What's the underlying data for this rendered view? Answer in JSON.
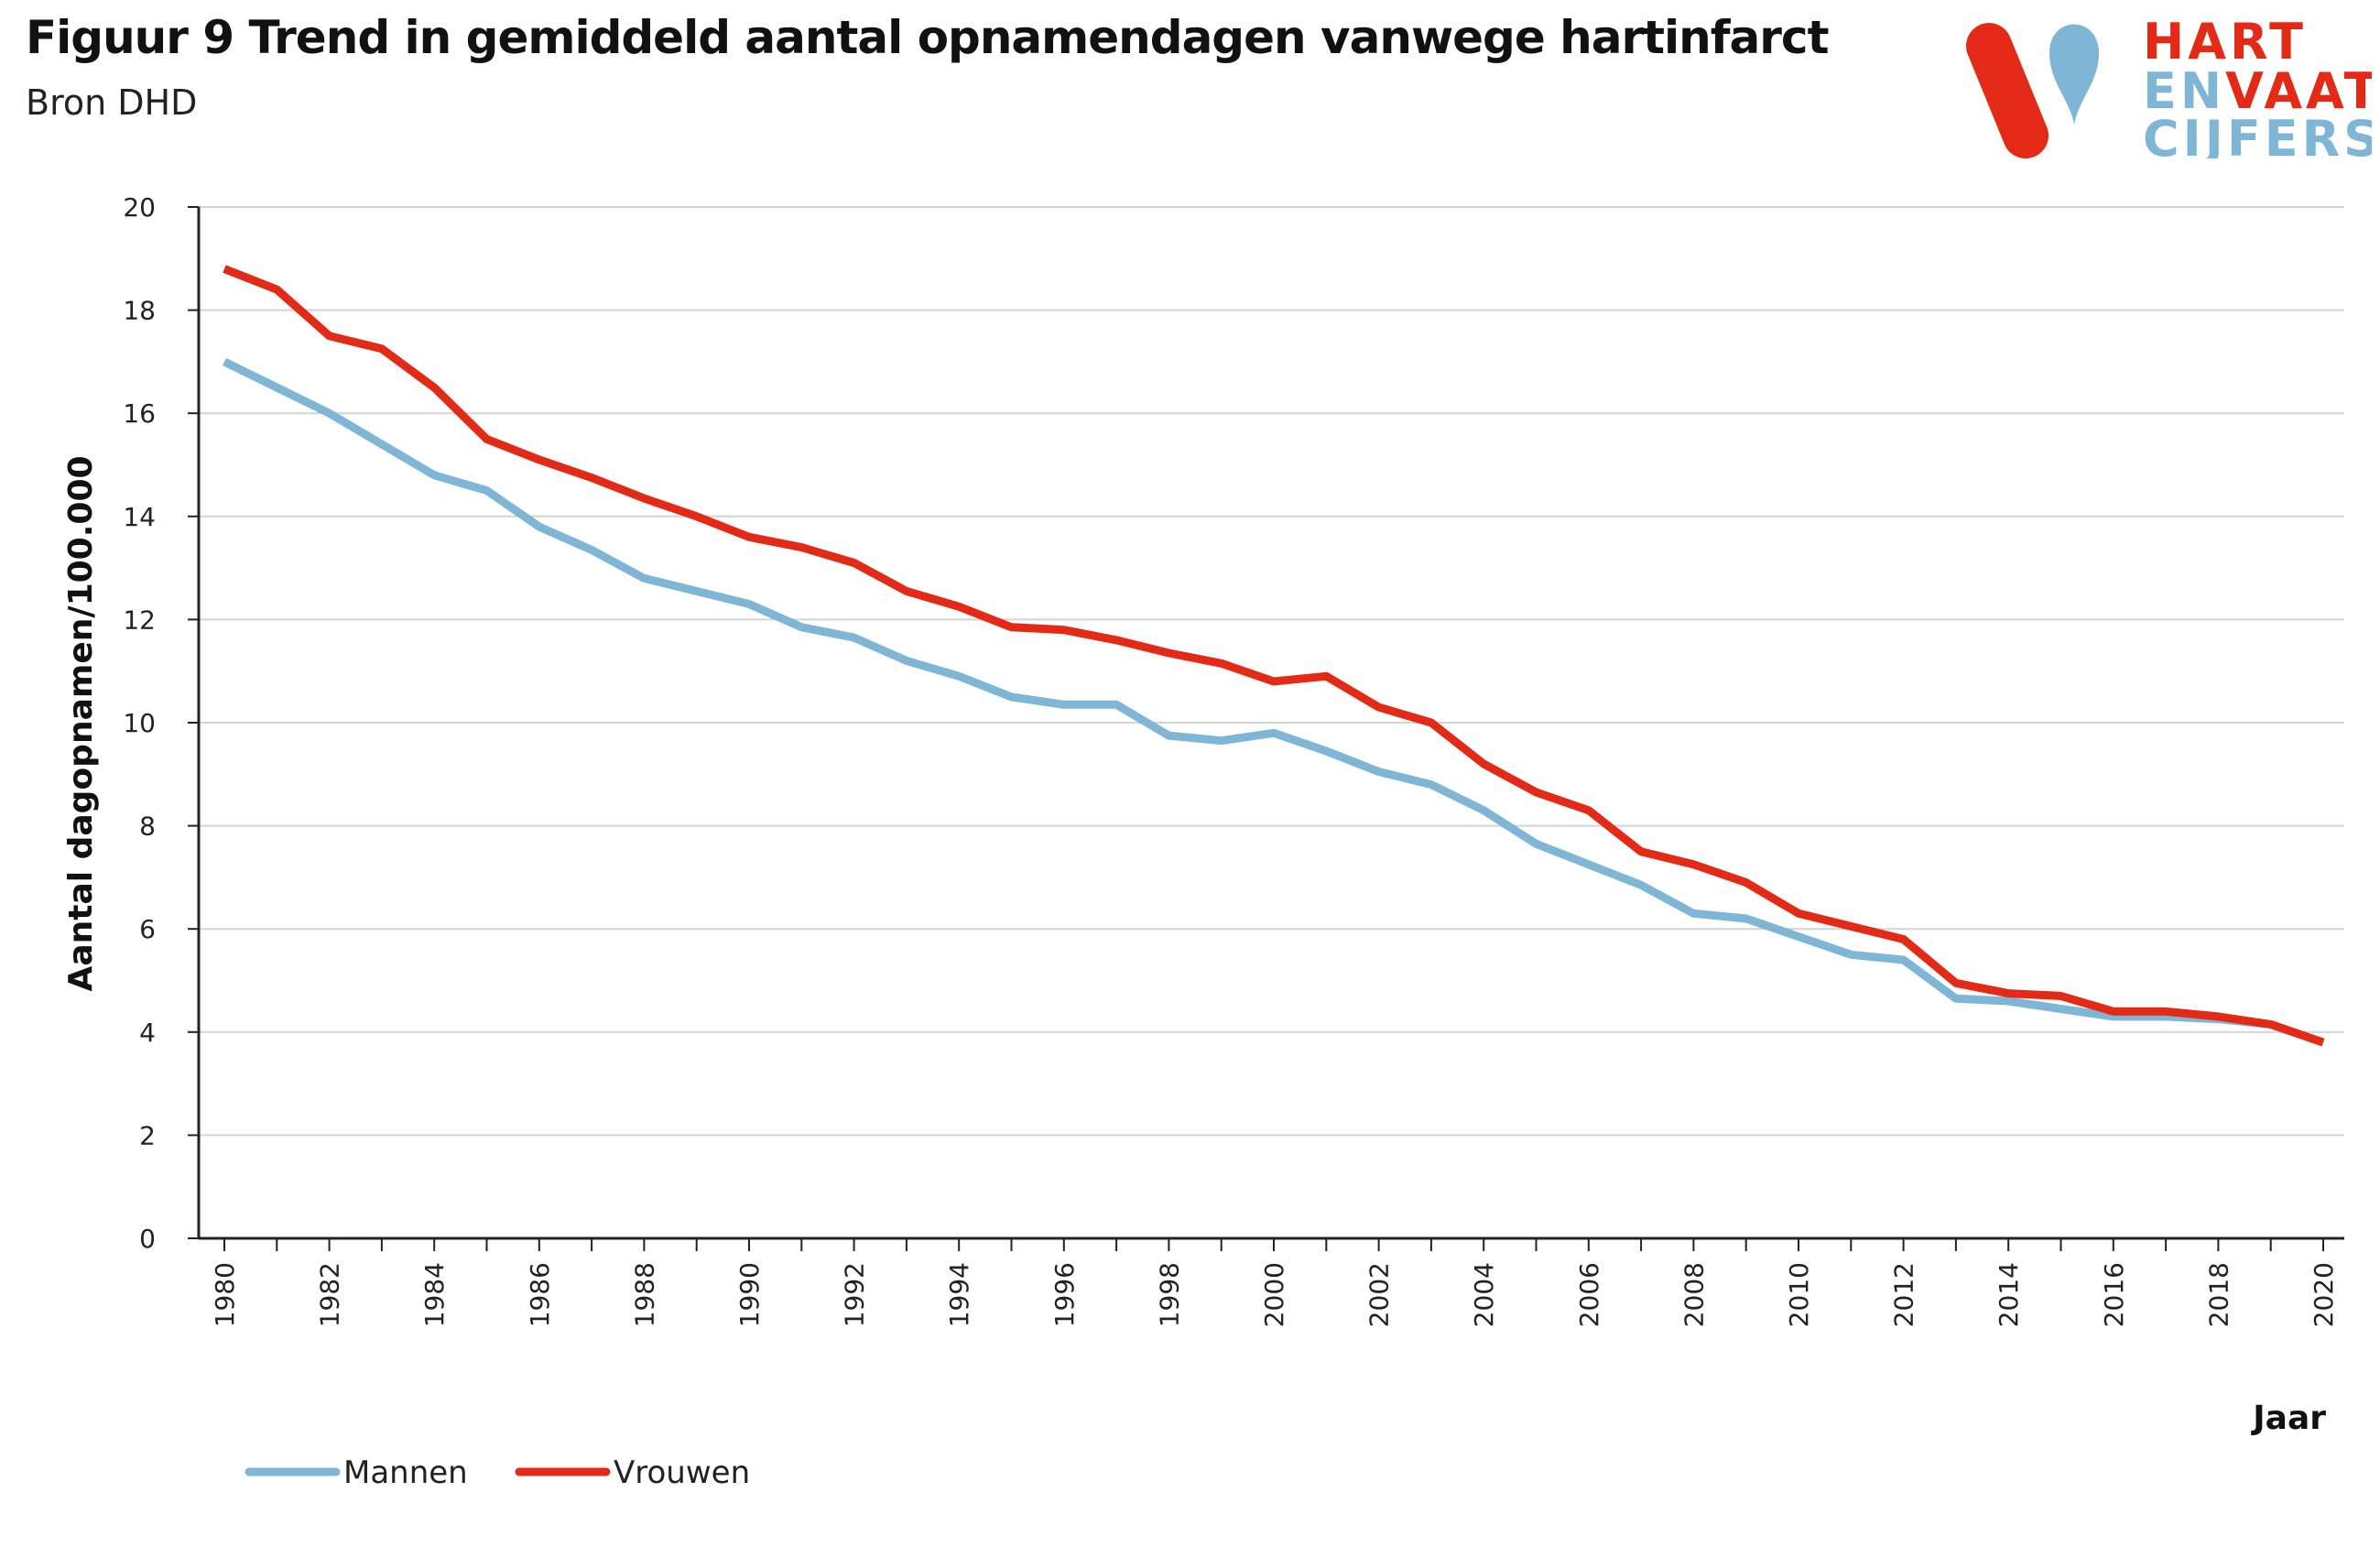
{
  "header": {
    "title": "Figuur 9 Trend in gemiddeld aantal opnamendagen vanwege hartinfarct",
    "subtitle": "Bron DHD"
  },
  "logo": {
    "line1": "HART",
    "line2_a": "EN",
    "line2_b": "VAAT",
    "line3": "CIJFERS",
    "colors": {
      "red": "#e32a17",
      "blue": "#7fb6d5"
    }
  },
  "chart_data": {
    "type": "line",
    "title": "Figuur 9 Trend in gemiddeld aantal opnamendagen vanwege hartinfarct",
    "xlabel": "Jaar",
    "ylabel": "Aantal dagopnamen/100.000",
    "ylim": [
      0,
      20
    ],
    "yticks": [
      0,
      2,
      4,
      6,
      8,
      10,
      12,
      14,
      16,
      18,
      20
    ],
    "xticks": [
      1980,
      1982,
      1984,
      1986,
      1988,
      1990,
      1992,
      1994,
      1996,
      1998,
      2000,
      2002,
      2004,
      2006,
      2008,
      2010,
      2012,
      2014,
      2016,
      2018,
      2020
    ],
    "grid": "horizontal",
    "legend": "bottom-left",
    "x": [
      1980,
      1981,
      1982,
      1983,
      1984,
      1985,
      1986,
      1987,
      1988,
      1989,
      1990,
      1991,
      1992,
      1993,
      1994,
      1995,
      1996,
      1997,
      1998,
      1999,
      2000,
      2001,
      2002,
      2003,
      2004,
      2005,
      2006,
      2007,
      2008,
      2009,
      2010,
      2011,
      2012,
      2013,
      2014,
      2015,
      2016,
      2017,
      2018,
      2019,
      2020
    ],
    "series": [
      {
        "name": "Mannen",
        "color": "#7fb6d5",
        "values": [
          17.0,
          16.5,
          16.0,
          15.4,
          14.8,
          14.5,
          13.8,
          13.35,
          12.8,
          12.55,
          12.3,
          11.85,
          11.65,
          11.2,
          10.9,
          10.5,
          10.35,
          10.35,
          9.75,
          9.65,
          9.8,
          9.45,
          9.05,
          8.8,
          8.3,
          7.65,
          7.25,
          6.85,
          6.3,
          6.2,
          5.85,
          5.5,
          5.4,
          4.65,
          4.6,
          4.45,
          4.3,
          4.3,
          4.25,
          4.15,
          3.8
        ]
      },
      {
        "name": "Vrouwen",
        "color": "#e32a17",
        "values": [
          18.8,
          18.4,
          17.5,
          17.25,
          16.5,
          15.5,
          15.1,
          14.75,
          14.35,
          14.0,
          13.6,
          13.4,
          13.1,
          12.55,
          12.25,
          11.85,
          11.8,
          11.6,
          11.35,
          11.15,
          10.8,
          10.9,
          10.3,
          10.0,
          9.2,
          8.65,
          8.3,
          7.5,
          7.25,
          6.9,
          6.3,
          6.05,
          5.8,
          4.95,
          4.75,
          4.7,
          4.4,
          4.4,
          4.3,
          4.15,
          3.8
        ]
      }
    ]
  }
}
